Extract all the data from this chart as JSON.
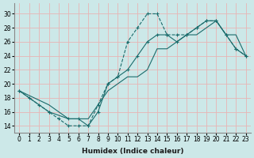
{
  "xlabel": "Humidex (Indice chaleur)",
  "bg_color": "#cce8e8",
  "grid_color": "#e8b4b4",
  "line_color": "#1a6b6b",
  "xlim": [
    -0.5,
    23.5
  ],
  "ylim": [
    13,
    31.5
  ],
  "xticks": [
    0,
    1,
    2,
    3,
    4,
    5,
    6,
    7,
    8,
    9,
    10,
    11,
    12,
    13,
    14,
    15,
    16,
    17,
    18,
    19,
    20,
    21,
    22,
    23
  ],
  "yticks": [
    14,
    16,
    18,
    20,
    22,
    24,
    26,
    28,
    30
  ],
  "curve1_x": [
    0,
    1,
    3,
    4,
    5,
    6,
    7,
    8,
    9,
    10,
    11,
    12,
    13,
    14,
    15,
    16,
    17,
    18,
    19,
    20,
    21,
    22,
    23
  ],
  "curve1_y": [
    19,
    18,
    16,
    15,
    14,
    14,
    14,
    17,
    20,
    21,
    26,
    28,
    30,
    30,
    27,
    27,
    27,
    28,
    29,
    29,
    27,
    25,
    24
  ],
  "curve2_x": [
    0,
    2,
    3,
    5,
    6,
    7,
    8,
    9,
    10,
    11,
    12,
    13,
    14,
    15,
    16,
    17,
    18,
    19,
    20,
    21,
    22,
    23
  ],
  "curve2_y": [
    19,
    17,
    16,
    15,
    15,
    14,
    16,
    20,
    21,
    22,
    24,
    26,
    27,
    27,
    26,
    27,
    28,
    29,
    29,
    27,
    25,
    24
  ],
  "line3_x": [
    0,
    3,
    5,
    6,
    7,
    8,
    9,
    10,
    11,
    12,
    13,
    14,
    15,
    16,
    17,
    18,
    19,
    20,
    21,
    22,
    23
  ],
  "line3_y": [
    19,
    17,
    15,
    15,
    15,
    17,
    19,
    20,
    21,
    21,
    22,
    25,
    25,
    26,
    27,
    27,
    28,
    29,
    27,
    27,
    24
  ]
}
